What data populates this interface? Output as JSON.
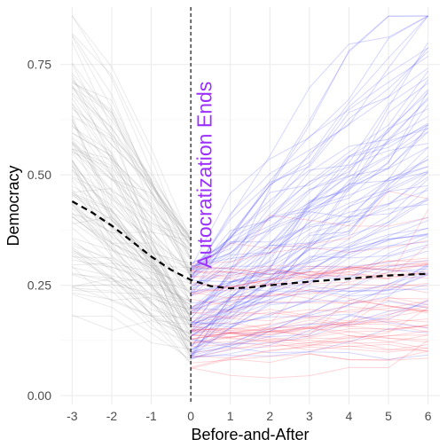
{
  "chart_data": {
    "type": "line",
    "title": "",
    "xlabel": "Before-and-After",
    "ylabel": "Democracy",
    "xlim": [
      -3.3,
      6.3
    ],
    "ylim": [
      -0.02,
      0.88
    ],
    "x_ticks": [
      -3,
      -2,
      -1,
      0,
      1,
      2,
      3,
      4,
      5,
      6
    ],
    "x_tick_labels": [
      "-3",
      "-2",
      "-1",
      "0",
      "1",
      "2",
      "3",
      "4",
      "5",
      "6"
    ],
    "y_ticks": [
      0.0,
      0.25,
      0.5,
      0.75
    ],
    "y_tick_labels": [
      "0.00",
      "0.25",
      "0.50",
      "0.75"
    ],
    "grid": true,
    "vline": {
      "x": 0,
      "style": "dashed",
      "color": "#000000"
    },
    "annotation": {
      "text": "Autocratization Ends",
      "x": 0.35,
      "y": 0.5,
      "rotation": -90,
      "color": "#9b30ff"
    },
    "series_colors": {
      "before": "#9e9e9e",
      "after_rising": "#3030ff",
      "after_flat": "#ff3344"
    },
    "average_curve": {
      "style": "dashed",
      "color": "#000000",
      "x": [
        -3,
        -2.5,
        -2,
        -1.5,
        -1,
        -0.5,
        0,
        0.5,
        1,
        1.5,
        2,
        3,
        4,
        5,
        6
      ],
      "y": [
        0.44,
        0.415,
        0.385,
        0.35,
        0.315,
        0.285,
        0.262,
        0.248,
        0.243,
        0.245,
        0.25,
        0.258,
        0.265,
        0.272,
        0.276
      ]
    },
    "before_series_count": 110,
    "after_rising_series_count": 85,
    "after_flat_series_count": 50
  }
}
